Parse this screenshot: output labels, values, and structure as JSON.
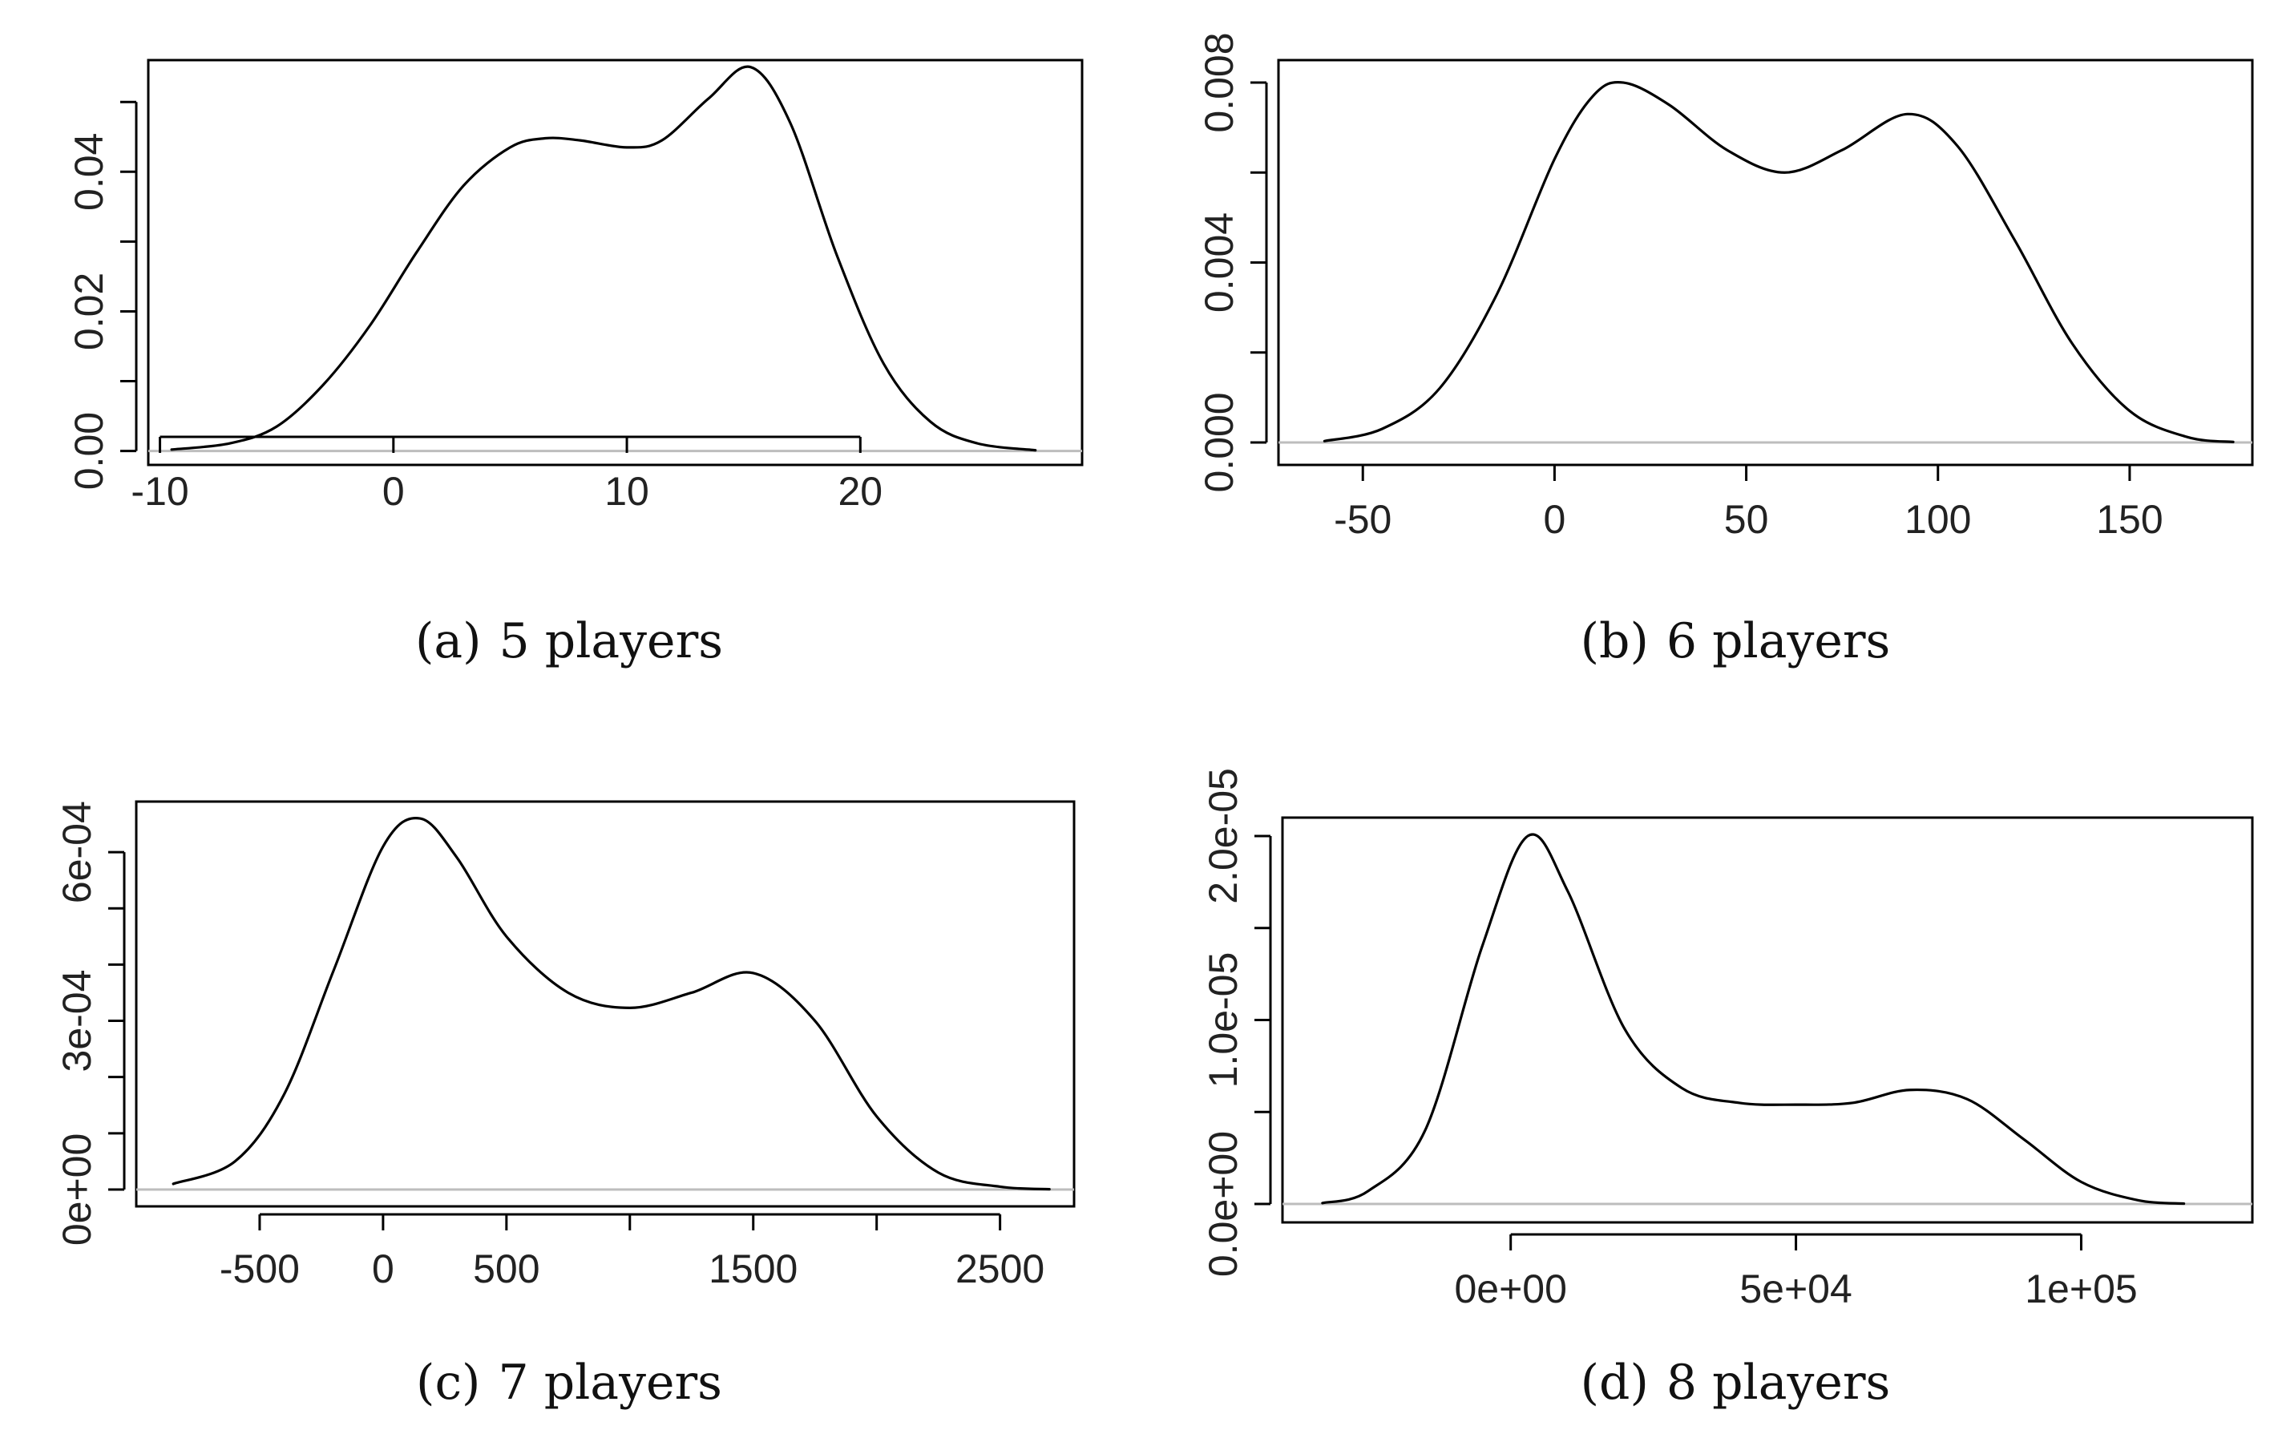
{
  "chart_data": [
    {
      "type": "line",
      "title": "5 players",
      "caption_label": "(a)",
      "caption_text": "5 players",
      "xlabel": "",
      "ylabel": "",
      "xlim": [
        -10.5,
        29.5
      ],
      "ylim": [
        -0.002,
        0.056
      ],
      "x_ticks": [
        -10,
        0,
        10,
        20
      ],
      "x_tick_labels": [
        "-10",
        "0",
        "10",
        "20"
      ],
      "y_ticks": [
        0,
        0.01,
        0.02,
        0.03,
        0.04,
        0.05
      ],
      "y_tick_labels": [
        "0.00",
        "",
        "0.02",
        "",
        "0.04",
        ""
      ],
      "series": [
        {
          "name": "density",
          "x": [
            -9.5,
            -7,
            -5,
            -3,
            -1,
            1,
            3,
            5,
            6.5,
            8,
            10,
            11.5,
            13.5,
            15.3,
            17,
            19,
            21,
            23,
            25,
            27.5
          ],
          "y": [
            0.0002,
            0.0011,
            0.0035,
            0.0095,
            0.018,
            0.0285,
            0.038,
            0.0435,
            0.0448,
            0.0445,
            0.0435,
            0.0445,
            0.0505,
            0.055,
            0.047,
            0.028,
            0.0125,
            0.0042,
            0.0011,
            0.0001
          ]
        }
      ]
    },
    {
      "type": "line",
      "title": "6 players",
      "caption_label": "(b)",
      "caption_text": "6 players",
      "xlabel": "",
      "ylabel": "",
      "xlim": [
        -72,
        182
      ],
      "ylim": [
        -0.0005,
        0.0085
      ],
      "x_ticks": [
        -50,
        0,
        50,
        100,
        150
      ],
      "x_tick_labels": [
        "-50",
        "0",
        "50",
        "100",
        "150"
      ],
      "y_ticks": [
        0,
        0.002,
        0.004,
        0.006,
        0.008
      ],
      "y_tick_labels": [
        "0.000",
        "",
        "0.004",
        "",
        "0.008"
      ],
      "series": [
        {
          "name": "density",
          "x": [
            -60,
            -45,
            -30,
            -15,
            0,
            10,
            18,
            30,
            45,
            60,
            75,
            92,
            105,
            120,
            135,
            150,
            165,
            177
          ],
          "y": [
            3e-05,
            0.0003,
            0.0012,
            0.0033,
            0.0063,
            0.0077,
            0.008,
            0.0075,
            0.0065,
            0.006,
            0.0065,
            0.0073,
            0.0066,
            0.0045,
            0.0022,
            0.0007,
            0.00012,
            1e-05
          ]
        }
      ]
    },
    {
      "type": "line",
      "title": "7 players",
      "caption_label": "(c)",
      "caption_text": "7 players",
      "xlabel": "",
      "ylabel": "",
      "xlim": [
        -1000,
        2800
      ],
      "ylim": [
        -3e-05,
        0.00069
      ],
      "x_ticks": [
        -500,
        0,
        500,
        1000,
        1500,
        2000,
        2500
      ],
      "x_tick_labels": [
        "-500",
        "0",
        "500",
        "",
        "1500",
        "",
        "2500"
      ],
      "y_ticks": [
        0,
        0.0001,
        0.0002,
        0.0003,
        0.0004,
        0.0005,
        0.0006
      ],
      "y_tick_labels": [
        "0e+00",
        "",
        "",
        "3e-04",
        "",
        "",
        "6e-04"
      ],
      "series": [
        {
          "name": "density",
          "x": [
            -850,
            -600,
            -400,
            -200,
            0,
            150,
            300,
            500,
            750,
            1000,
            1250,
            1500,
            1750,
            2000,
            2250,
            2500,
            2700
          ],
          "y": [
            1e-05,
            5e-05,
            0.00017,
            0.00039,
            0.00061,
            0.00066,
            0.00059,
            0.00045,
            0.00035,
            0.000323,
            0.00035,
            0.000385,
            0.0003,
            0.00013,
            3e-05,
            5e-06,
            5e-07
          ]
        }
      ]
    },
    {
      "type": "line",
      "title": "8 players",
      "caption_label": "(d)",
      "caption_text": "8 players",
      "xlabel": "",
      "ylabel": "",
      "xlim": [
        -40000,
        130000
      ],
      "ylim": [
        -1e-06,
        2.1e-05
      ],
      "x_ticks": [
        0,
        50000,
        100000
      ],
      "x_tick_labels": [
        "0e+00",
        "5e+04",
        "1e+05"
      ],
      "y_ticks": [
        0,
        5e-06,
        1e-05,
        1.5e-05,
        2e-05
      ],
      "y_tick_labels": [
        "0.0e+00",
        "",
        "1.0e-05",
        "",
        "2.0e-05"
      ],
      "series": [
        {
          "name": "density",
          "x": [
            -33000,
            -25000,
            -15000,
            -5000,
            3000,
            10000,
            20000,
            30000,
            40000,
            50000,
            60000,
            70000,
            80000,
            90000,
            100000,
            110000,
            118000
          ],
          "y": [
            5e-08,
            7e-07,
            4e-06,
            1.4e-05,
            2e-05,
            1.7e-05,
            9.5e-06,
            6.3e-06,
            5.5e-06,
            5.4e-06,
            5.5e-06,
            6.2e-06,
            5.7e-06,
            3.5e-06,
            1.2e-06,
            2e-07,
            2e-08
          ]
        }
      ]
    }
  ]
}
